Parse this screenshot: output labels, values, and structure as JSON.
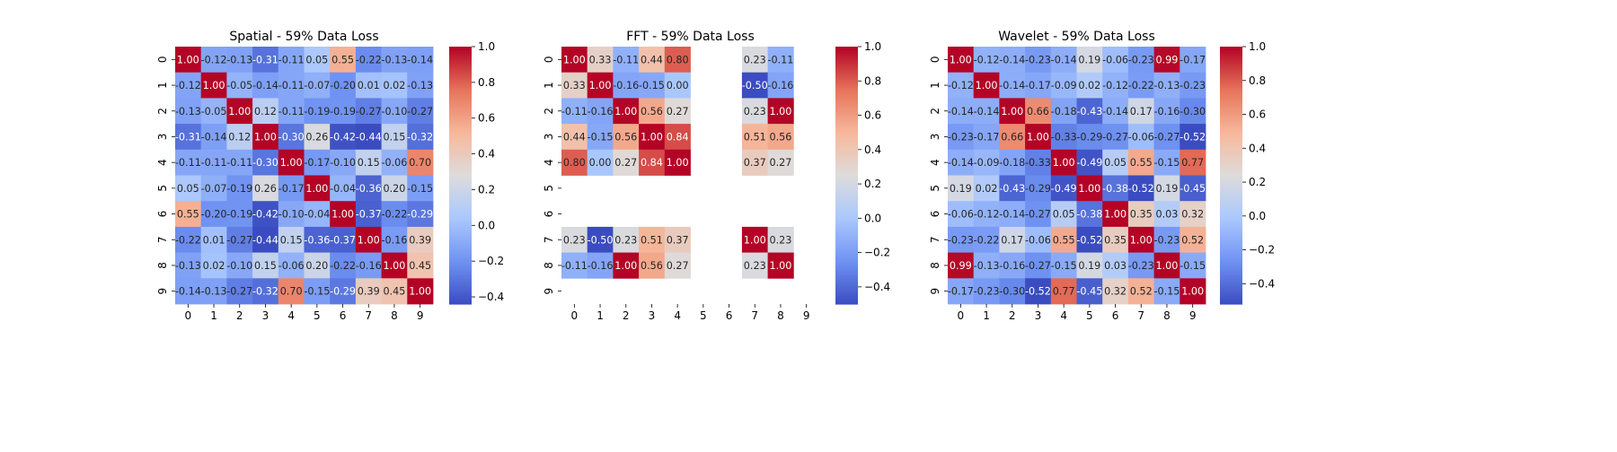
{
  "colormap": {
    "name": "coolwarm",
    "stops": [
      "#3b4cc0",
      "#6f92f3",
      "#aac7fd",
      "#dddcdc",
      "#f7b89c",
      "#e7745b",
      "#b40426"
    ]
  },
  "chart_data": [
    {
      "type": "heatmap",
      "title": "Spatial - 59% Data Loss",
      "x_ticks": [
        "0",
        "1",
        "2",
        "3",
        "4",
        "5",
        "6",
        "7",
        "8",
        "9"
      ],
      "y_ticks": [
        "0",
        "1",
        "2",
        "3",
        "4",
        "5",
        "6",
        "7",
        "8",
        "9"
      ],
      "vmin": -0.44,
      "vmax": 1.0,
      "colorbar_ticks": [
        -0.4,
        -0.2,
        0.0,
        0.2,
        0.4,
        0.6,
        0.8,
        1.0
      ],
      "colorbar_tick_labels": [
        "−0.4",
        "−0.2",
        "0.0",
        "0.2",
        "0.4",
        "0.6",
        "0.8",
        "1.0"
      ],
      "values": [
        [
          1.0,
          -0.12,
          -0.13,
          -0.31,
          -0.11,
          0.05,
          0.55,
          -0.22,
          -0.13,
          -0.14
        ],
        [
          -0.12,
          1.0,
          -0.05,
          -0.14,
          -0.11,
          -0.07,
          -0.2,
          0.01,
          0.02,
          -0.13
        ],
        [
          -0.13,
          -0.05,
          1.0,
          0.12,
          -0.11,
          -0.19,
          -0.19,
          -0.27,
          -0.1,
          -0.27
        ],
        [
          -0.31,
          -0.14,
          0.12,
          1.0,
          -0.3,
          0.26,
          -0.42,
          -0.44,
          0.15,
          -0.32
        ],
        [
          -0.11,
          -0.11,
          -0.11,
          -0.3,
          1.0,
          -0.17,
          -0.1,
          0.15,
          -0.06,
          0.7
        ],
        [
          0.05,
          -0.07,
          -0.19,
          0.26,
          -0.17,
          1.0,
          -0.04,
          -0.36,
          0.2,
          -0.15
        ],
        [
          0.55,
          -0.2,
          -0.19,
          -0.42,
          -0.1,
          -0.04,
          1.0,
          -0.37,
          -0.22,
          -0.29
        ],
        [
          -0.22,
          0.01,
          -0.27,
          -0.44,
          0.15,
          -0.36,
          -0.37,
          1.0,
          -0.16,
          0.39
        ],
        [
          -0.13,
          0.02,
          -0.1,
          0.15,
          -0.06,
          0.2,
          -0.22,
          -0.16,
          1.0,
          0.45
        ],
        [
          -0.14,
          -0.13,
          -0.27,
          -0.32,
          0.7,
          -0.15,
          -0.29,
          0.39,
          0.45,
          1.0
        ]
      ]
    },
    {
      "type": "heatmap",
      "title": "FFT - 59% Data Loss",
      "x_ticks": [
        "0",
        "1",
        "2",
        "3",
        "4",
        "5",
        "6",
        "7",
        "8",
        "9"
      ],
      "y_ticks": [
        "0",
        "1",
        "2",
        "3",
        "4",
        "5",
        "6",
        "7",
        "8",
        "9"
      ],
      "vmin": -0.5,
      "vmax": 1.0,
      "colorbar_ticks": [
        -0.4,
        -0.2,
        0.0,
        0.2,
        0.4,
        0.6,
        0.8,
        1.0
      ],
      "colorbar_tick_labels": [
        "−0.4",
        "−0.2",
        "0.0",
        "0.2",
        "0.4",
        "0.6",
        "0.8",
        "1.0"
      ],
      "values": [
        [
          1.0,
          0.33,
          -0.11,
          0.44,
          0.8,
          null,
          null,
          0.23,
          -0.11,
          null
        ],
        [
          0.33,
          1.0,
          -0.16,
          -0.15,
          -0.0,
          null,
          null,
          -0.5,
          -0.16,
          null
        ],
        [
          -0.11,
          -0.16,
          1.0,
          0.56,
          0.27,
          null,
          null,
          0.23,
          1.0,
          null
        ],
        [
          0.44,
          -0.15,
          0.56,
          1.0,
          0.84,
          null,
          null,
          0.51,
          0.56,
          null
        ],
        [
          0.8,
          -0.0,
          0.27,
          0.84,
          1.0,
          null,
          null,
          0.37,
          0.27,
          null
        ],
        [
          null,
          null,
          null,
          null,
          null,
          null,
          null,
          null,
          null,
          null
        ],
        [
          null,
          null,
          null,
          null,
          null,
          null,
          null,
          null,
          null,
          null
        ],
        [
          0.23,
          -0.5,
          0.23,
          0.51,
          0.37,
          null,
          null,
          1.0,
          0.23,
          null
        ],
        [
          -0.11,
          -0.16,
          1.0,
          0.56,
          0.27,
          null,
          null,
          0.23,
          1.0,
          null
        ],
        [
          null,
          null,
          null,
          null,
          null,
          null,
          null,
          null,
          null,
          null
        ]
      ]
    },
    {
      "type": "heatmap",
      "title": "Wavelet - 59% Data Loss",
      "x_ticks": [
        "0",
        "1",
        "2",
        "3",
        "4",
        "5",
        "6",
        "7",
        "8",
        "9"
      ],
      "y_ticks": [
        "0",
        "1",
        "2",
        "3",
        "4",
        "5",
        "6",
        "7",
        "8",
        "9"
      ],
      "vmin": -0.52,
      "vmax": 1.0,
      "colorbar_ticks": [
        -0.4,
        -0.2,
        0.0,
        0.2,
        0.4,
        0.6,
        0.8,
        1.0
      ],
      "colorbar_tick_labels": [
        "−0.4",
        "−0.2",
        "0.0",
        "0.2",
        "0.4",
        "0.6",
        "0.8",
        "1.0"
      ],
      "values": [
        [
          1.0,
          -0.12,
          -0.14,
          -0.23,
          -0.14,
          0.19,
          -0.06,
          -0.23,
          0.99,
          -0.17
        ],
        [
          -0.12,
          1.0,
          -0.14,
          -0.17,
          -0.09,
          0.02,
          -0.12,
          -0.22,
          -0.13,
          -0.23
        ],
        [
          -0.14,
          -0.14,
          1.0,
          0.66,
          -0.18,
          -0.43,
          -0.14,
          0.17,
          -0.16,
          -0.3
        ],
        [
          -0.23,
          -0.17,
          0.66,
          1.0,
          -0.33,
          -0.29,
          -0.27,
          -0.06,
          -0.27,
          -0.52
        ],
        [
          -0.14,
          -0.09,
          -0.18,
          -0.33,
          1.0,
          -0.49,
          0.05,
          0.55,
          -0.15,
          0.77
        ],
        [
          0.19,
          0.02,
          -0.43,
          -0.29,
          -0.49,
          1.0,
          -0.38,
          -0.52,
          0.19,
          -0.45
        ],
        [
          -0.06,
          -0.12,
          -0.14,
          -0.27,
          0.05,
          -0.38,
          1.0,
          0.35,
          0.03,
          0.32
        ],
        [
          -0.23,
          -0.22,
          0.17,
          -0.06,
          0.55,
          -0.52,
          0.35,
          1.0,
          -0.23,
          0.52
        ],
        [
          0.99,
          -0.13,
          -0.16,
          -0.27,
          -0.15,
          0.19,
          0.03,
          -0.23,
          1.0,
          -0.15
        ],
        [
          -0.17,
          -0.23,
          -0.3,
          -0.52,
          0.77,
          -0.45,
          0.32,
          0.52,
          -0.15,
          1.0
        ]
      ]
    }
  ]
}
